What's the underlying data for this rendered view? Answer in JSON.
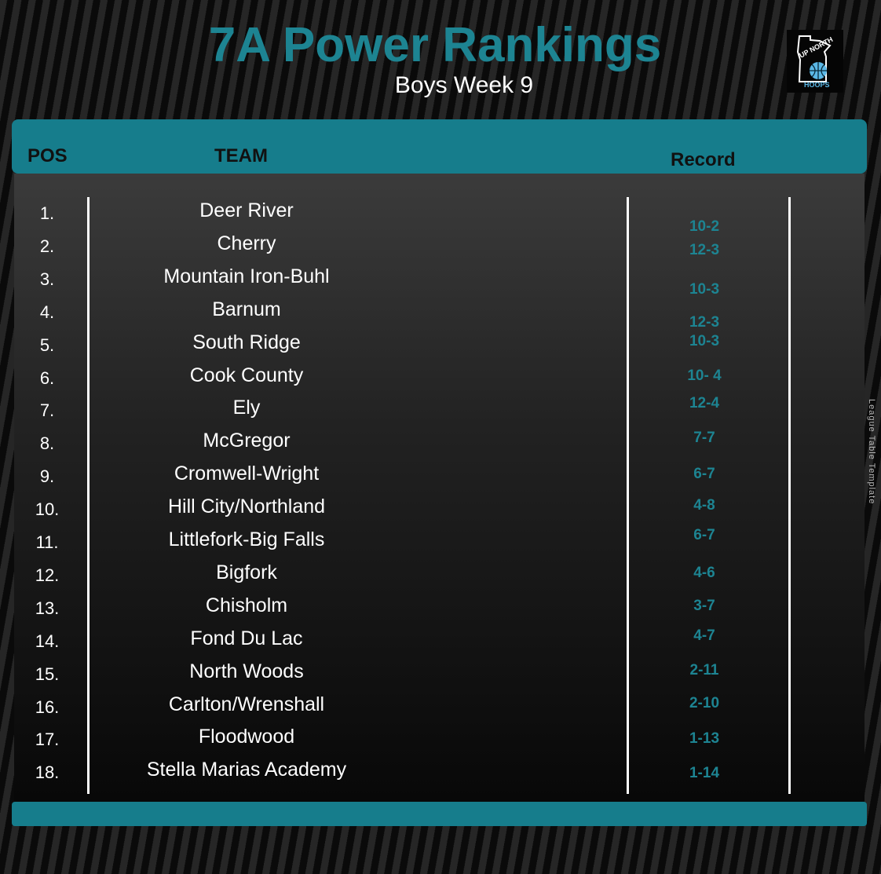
{
  "header": {
    "title": "7A Power Rankings",
    "subtitle": "Boys Week 9"
  },
  "logo": {
    "line1": "UP NORTH",
    "line2": "HOOPS",
    "icon": "minnesota-basketball-logo"
  },
  "side_text": "League Table Template",
  "table": {
    "columns": {
      "pos": "POS",
      "team": "TEAM",
      "record": "Record"
    },
    "rows": [
      {
        "pos": "1.",
        "team": "Deer River",
        "record": "10-2"
      },
      {
        "pos": "2.",
        "team": "Cherry",
        "record": "12-3"
      },
      {
        "pos": "3.",
        "team": "Mountain Iron-Buhl",
        "record": "10-3"
      },
      {
        "pos": "4.",
        "team": "Barnum",
        "record": "12-3"
      },
      {
        "pos": "5.",
        "team": "South Ridge",
        "record": "10-3"
      },
      {
        "pos": "6.",
        "team": "Cook County",
        "record": "10- 4"
      },
      {
        "pos": "7.",
        "team": "Ely",
        "record": "12-4"
      },
      {
        "pos": "8.",
        "team": "McGregor",
        "record": "7-7"
      },
      {
        "pos": "9.",
        "team": "Cromwell-Wright",
        "record": "6-7"
      },
      {
        "pos": "10.",
        "team": "Hill City/Northland",
        "record": "4-8"
      },
      {
        "pos": "11.",
        "team": "Littlefork-Big Falls",
        "record": "6-7"
      },
      {
        "pos": "12.",
        "team": "Bigfork",
        "record": "4-6"
      },
      {
        "pos": "13.",
        "team": "Chisholm",
        "record": "3-7"
      },
      {
        "pos": "14.",
        "team": "Fond Du Lac",
        "record": "4-7"
      },
      {
        "pos": "15.",
        "team": "North Woods",
        "record": "2-11"
      },
      {
        "pos": "16.",
        "team": "Carlton/Wrenshall",
        "record": "2-10"
      },
      {
        "pos": "17.",
        "team": "Floodwood",
        "record": "1-13"
      },
      {
        "pos": "18.",
        "team": "Stella Marias Academy",
        "record": "1-14"
      }
    ]
  },
  "colors": {
    "accent": "#167d8c",
    "title": "#1d8492",
    "text": "#ffffff",
    "logo_ball": "#5bb8e6"
  }
}
